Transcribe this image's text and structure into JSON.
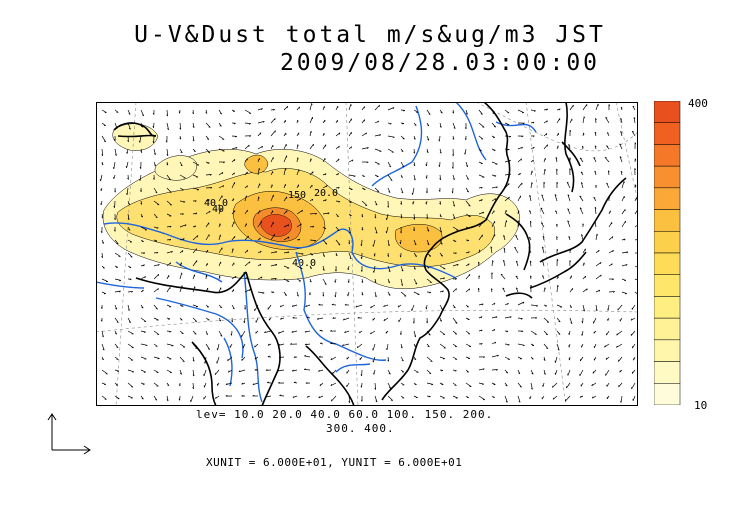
{
  "title": {
    "line1": "U-V&Dust total m/s&ug/m3 JST",
    "line2": "2009/08/28.03:00:00"
  },
  "colorbar": {
    "max_label": "400",
    "min_label": "10",
    "colors": [
      "#e8501e",
      "#f06020",
      "#f47828",
      "#f89030",
      "#fba838",
      "#fcc040",
      "#fdd04c",
      "#fedc58",
      "#fee66a",
      "#ffee80",
      "#fff296",
      "#fff6ac",
      "#fff9c4",
      "#fffcdc"
    ]
  },
  "legend": {
    "levels_line1": "lev= 10.0 20.0 40.0 60.0 100. 150. 200.",
    "levels_line2": "300. 400.",
    "units": "XUNIT = 6.000E+01, YUNIT = 6.000E+01"
  },
  "contour_labels": [
    "40.0",
    "40",
    "150",
    "20.0",
    "40.0"
  ],
  "colors": {
    "coast": "#000000",
    "river": "#1e64dc",
    "dust_low": "#fff4b0",
    "dust_mid": "#fcd040",
    "dust_high": "#e8501e"
  }
}
